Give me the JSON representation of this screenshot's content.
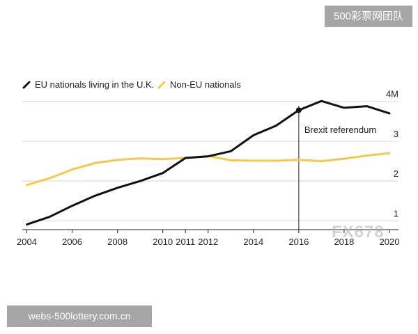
{
  "watermarks": {
    "top_right": "500彩票网团队",
    "bottom_left": "webs-500lottery.com.cn",
    "overlay": "FX678"
  },
  "chart_data": {
    "type": "line",
    "title": "",
    "xlabel": "",
    "ylabel": "",
    "x": [
      2004,
      2005,
      2006,
      2007,
      2008,
      2009,
      2010,
      2011,
      2012,
      2013,
      2014,
      2015,
      2016,
      2017,
      2018,
      2019,
      2020
    ],
    "series": [
      {
        "name": "EU nationals living in the U.K.",
        "color": "#111111",
        "values": [
          0.91,
          1.1,
          1.38,
          1.63,
          1.83,
          2.0,
          2.2,
          2.58,
          2.62,
          2.75,
          3.15,
          3.39,
          3.78,
          4.01,
          3.84,
          3.88,
          3.7
        ]
      },
      {
        "name": "Non-EU nationals",
        "color": "#f2c94c",
        "values": [
          1.9,
          2.07,
          2.29,
          2.45,
          2.53,
          2.57,
          2.55,
          2.58,
          2.63,
          2.52,
          2.51,
          2.51,
          2.53,
          2.5,
          2.56,
          2.64,
          2.7
        ]
      }
    ],
    "x_ticks": [
      2004,
      2006,
      2008,
      2010,
      2011,
      2012,
      2014,
      2016,
      2018,
      2020
    ],
    "x_tick_labels": [
      "2004",
      "2006",
      "2008",
      "2010",
      "2011",
      "2012",
      "2014",
      "2016",
      "2018",
      "2020"
    ],
    "y_ticks": [
      1,
      2,
      3,
      4
    ],
    "y_tick_labels": [
      "1",
      "2",
      "3",
      "4M"
    ],
    "ylim": [
      0.78,
      4.1
    ],
    "xlim": [
      2003.8,
      2020.4
    ],
    "grid": true,
    "legend_position": "top-left",
    "annotations": [
      {
        "x": 2016,
        "y": 3.78,
        "label": "Brexit referendum",
        "type": "vertical-line"
      }
    ]
  }
}
